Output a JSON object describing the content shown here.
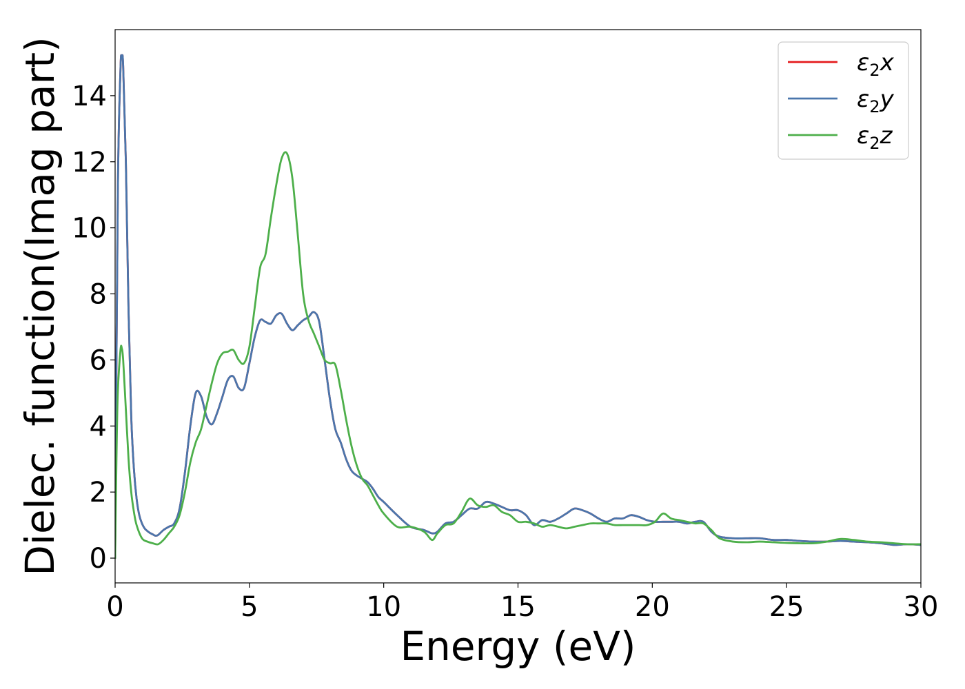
{
  "chart_data": {
    "type": "line",
    "xlabel": "Energy (eV)",
    "ylabel": "Dielec. function(Imag part)",
    "xlim": [
      0,
      30
    ],
    "ylim": [
      -0.75,
      16.0
    ],
    "xticks": [
      0,
      5,
      10,
      15,
      20,
      25,
      30
    ],
    "yticks": [
      0,
      2,
      4,
      6,
      8,
      10,
      12,
      14
    ],
    "grid": false,
    "legend_position": "top-right",
    "series": [
      {
        "name": "ε2x",
        "legend_base": "ε",
        "legend_sub": "2",
        "legend_suffix": "x",
        "color": "#e41a1c",
        "x": [
          0,
          0.1,
          0.2,
          0.25,
          0.3,
          0.4,
          0.5,
          0.6,
          0.7,
          0.8,
          0.9,
          1.0,
          1.1,
          1.2,
          1.3,
          1.4,
          1.5,
          1.6,
          1.8,
          2.0,
          2.2,
          2.4,
          2.6,
          2.8,
          3.0,
          3.2,
          3.4,
          3.6,
          3.8,
          4.0,
          4.2,
          4.4,
          4.6,
          4.8,
          5.0,
          5.2,
          5.4,
          5.6,
          5.8,
          6.0,
          6.2,
          6.4,
          6.6,
          6.8,
          7.0,
          7.2,
          7.4,
          7.6,
          7.8,
          8.0,
          8.2,
          8.4,
          8.6,
          8.8,
          9.0,
          9.2,
          9.4,
          9.6,
          9.8,
          10.0,
          10.5,
          11.0,
          11.5,
          11.8,
          12.0,
          12.3,
          12.6,
          12.9,
          13.2,
          13.5,
          13.8,
          14.1,
          14.4,
          14.7,
          15.0,
          15.3,
          15.6,
          15.9,
          16.2,
          16.5,
          16.8,
          17.1,
          17.4,
          17.7,
          18.0,
          18.3,
          18.6,
          18.9,
          19.2,
          19.5,
          19.8,
          20.1,
          20.4,
          20.7,
          21.0,
          21.3,
          21.6,
          21.9,
          22.2,
          22.5,
          23.0,
          23.5,
          24.0,
          24.5,
          25.0,
          25.5,
          26.0,
          26.5,
          27.0,
          27.5,
          28.0,
          28.5,
          29.0,
          29.5,
          30.0
        ],
        "y": [
          0,
          11.0,
          14.8,
          15.15,
          14.9,
          12.0,
          7.5,
          4.3,
          2.7,
          1.8,
          1.3,
          1.05,
          0.9,
          0.82,
          0.76,
          0.72,
          0.68,
          0.7,
          0.85,
          0.95,
          1.05,
          1.5,
          2.6,
          4.0,
          5.0,
          4.9,
          4.3,
          4.05,
          4.4,
          4.9,
          5.4,
          5.5,
          5.15,
          5.15,
          5.9,
          6.7,
          7.2,
          7.15,
          7.1,
          7.35,
          7.4,
          7.1,
          6.9,
          7.05,
          7.2,
          7.3,
          7.45,
          7.15,
          6.0,
          4.8,
          3.9,
          3.5,
          3.0,
          2.65,
          2.5,
          2.4,
          2.3,
          2.1,
          1.85,
          1.7,
          1.3,
          0.95,
          0.85,
          0.75,
          0.8,
          1.05,
          1.1,
          1.3,
          1.5,
          1.5,
          1.7,
          1.65,
          1.55,
          1.45,
          1.45,
          1.3,
          1.0,
          1.15,
          1.1,
          1.2,
          1.35,
          1.5,
          1.45,
          1.35,
          1.2,
          1.1,
          1.2,
          1.2,
          1.3,
          1.25,
          1.15,
          1.1,
          1.1,
          1.1,
          1.1,
          1.05,
          1.1,
          1.1,
          0.8,
          0.65,
          0.6,
          0.6,
          0.6,
          0.55,
          0.55,
          0.52,
          0.5,
          0.5,
          0.52,
          0.5,
          0.48,
          0.45,
          0.4,
          0.42,
          0.4
        ]
      },
      {
        "name": "ε2y",
        "legend_base": "ε",
        "legend_sub": "2",
        "legend_suffix": "y",
        "color": "#4a76ac",
        "x": [
          0,
          0.1,
          0.2,
          0.25,
          0.3,
          0.4,
          0.5,
          0.6,
          0.7,
          0.8,
          0.9,
          1.0,
          1.1,
          1.2,
          1.3,
          1.4,
          1.5,
          1.6,
          1.8,
          2.0,
          2.2,
          2.4,
          2.6,
          2.8,
          3.0,
          3.2,
          3.4,
          3.6,
          3.8,
          4.0,
          4.2,
          4.4,
          4.6,
          4.8,
          5.0,
          5.2,
          5.4,
          5.6,
          5.8,
          6.0,
          6.2,
          6.4,
          6.6,
          6.8,
          7.0,
          7.2,
          7.4,
          7.6,
          7.8,
          8.0,
          8.2,
          8.4,
          8.6,
          8.8,
          9.0,
          9.2,
          9.4,
          9.6,
          9.8,
          10.0,
          10.5,
          11.0,
          11.5,
          11.8,
          12.0,
          12.3,
          12.6,
          12.9,
          13.2,
          13.5,
          13.8,
          14.1,
          14.4,
          14.7,
          15.0,
          15.3,
          15.6,
          15.9,
          16.2,
          16.5,
          16.8,
          17.1,
          17.4,
          17.7,
          18.0,
          18.3,
          18.6,
          18.9,
          19.2,
          19.5,
          19.8,
          20.1,
          20.4,
          20.7,
          21.0,
          21.3,
          21.6,
          21.9,
          22.2,
          22.5,
          23.0,
          23.5,
          24.0,
          24.5,
          25.0,
          25.5,
          26.0,
          26.5,
          27.0,
          27.5,
          28.0,
          28.5,
          29.0,
          29.5,
          30.0
        ],
        "y": [
          0,
          11.0,
          14.8,
          15.15,
          14.9,
          12.0,
          7.5,
          4.3,
          2.7,
          1.8,
          1.3,
          1.05,
          0.9,
          0.82,
          0.76,
          0.72,
          0.68,
          0.7,
          0.85,
          0.95,
          1.05,
          1.5,
          2.6,
          4.0,
          5.0,
          4.9,
          4.3,
          4.05,
          4.4,
          4.9,
          5.4,
          5.5,
          5.15,
          5.15,
          5.9,
          6.7,
          7.2,
          7.15,
          7.1,
          7.35,
          7.4,
          7.1,
          6.9,
          7.05,
          7.2,
          7.3,
          7.45,
          7.15,
          6.0,
          4.8,
          3.9,
          3.5,
          3.0,
          2.65,
          2.5,
          2.4,
          2.3,
          2.1,
          1.85,
          1.7,
          1.3,
          0.95,
          0.85,
          0.75,
          0.8,
          1.05,
          1.1,
          1.3,
          1.5,
          1.5,
          1.7,
          1.65,
          1.55,
          1.45,
          1.45,
          1.3,
          1.0,
          1.15,
          1.1,
          1.2,
          1.35,
          1.5,
          1.45,
          1.35,
          1.2,
          1.1,
          1.2,
          1.2,
          1.3,
          1.25,
          1.15,
          1.1,
          1.1,
          1.1,
          1.1,
          1.05,
          1.1,
          1.1,
          0.8,
          0.65,
          0.6,
          0.6,
          0.6,
          0.55,
          0.55,
          0.52,
          0.5,
          0.5,
          0.52,
          0.5,
          0.48,
          0.45,
          0.4,
          0.42,
          0.4
        ]
      },
      {
        "name": "ε2z",
        "legend_base": "ε",
        "legend_sub": "2",
        "legend_suffix": "z",
        "color": "#4daf4a",
        "x": [
          0,
          0.05,
          0.1,
          0.2,
          0.25,
          0.3,
          0.4,
          0.5,
          0.6,
          0.7,
          0.8,
          1.0,
          1.2,
          1.4,
          1.6,
          1.8,
          2.0,
          2.2,
          2.4,
          2.6,
          2.8,
          3.0,
          3.2,
          3.4,
          3.6,
          3.8,
          4.0,
          4.2,
          4.4,
          4.6,
          4.8,
          5.0,
          5.2,
          5.4,
          5.6,
          5.8,
          6.0,
          6.2,
          6.4,
          6.6,
          6.8,
          7.0,
          7.2,
          7.4,
          7.6,
          7.8,
          8.0,
          8.2,
          8.4,
          8.6,
          8.8,
          9.0,
          9.2,
          9.4,
          9.6,
          9.8,
          10.0,
          10.5,
          11.0,
          11.5,
          11.8,
          12.0,
          12.3,
          12.6,
          12.9,
          13.2,
          13.5,
          13.8,
          14.1,
          14.4,
          14.7,
          15.0,
          15.3,
          15.6,
          15.9,
          16.2,
          16.5,
          16.8,
          17.1,
          17.4,
          17.7,
          18.0,
          18.3,
          18.6,
          18.9,
          19.2,
          19.5,
          19.8,
          20.1,
          20.4,
          20.7,
          21.0,
          21.3,
          21.6,
          21.9,
          22.2,
          22.5,
          23.0,
          23.5,
          24.0,
          24.5,
          25.0,
          25.5,
          26.0,
          26.5,
          27.0,
          27.5,
          28.0,
          28.5,
          29.0,
          29.5,
          30.0
        ],
        "y": [
          0,
          3.0,
          5.0,
          6.3,
          6.35,
          6.0,
          4.5,
          3.0,
          2.0,
          1.4,
          1.0,
          0.6,
          0.5,
          0.45,
          0.42,
          0.55,
          0.75,
          0.95,
          1.3,
          2.0,
          2.9,
          3.5,
          3.9,
          4.6,
          5.3,
          5.9,
          6.2,
          6.25,
          6.3,
          6.0,
          5.9,
          6.4,
          7.6,
          8.8,
          9.2,
          10.3,
          11.3,
          12.1,
          12.25,
          11.5,
          9.8,
          8.0,
          7.2,
          6.8,
          6.4,
          6.0,
          5.9,
          5.85,
          5.1,
          4.2,
          3.4,
          2.8,
          2.4,
          2.2,
          1.9,
          1.6,
          1.35,
          0.95,
          0.95,
          0.8,
          0.55,
          0.75,
          1.0,
          1.05,
          1.4,
          1.8,
          1.6,
          1.55,
          1.6,
          1.4,
          1.3,
          1.1,
          1.1,
          1.05,
          0.95,
          1.0,
          0.95,
          0.9,
          0.95,
          1.0,
          1.05,
          1.05,
          1.05,
          1.0,
          1.0,
          1.0,
          1.0,
          1.0,
          1.1,
          1.35,
          1.2,
          1.15,
          1.1,
          1.05,
          1.05,
          0.85,
          0.6,
          0.5,
          0.48,
          0.5,
          0.48,
          0.46,
          0.45,
          0.45,
          0.5,
          0.58,
          0.55,
          0.5,
          0.48,
          0.45,
          0.42,
          0.42
        ]
      }
    ]
  }
}
